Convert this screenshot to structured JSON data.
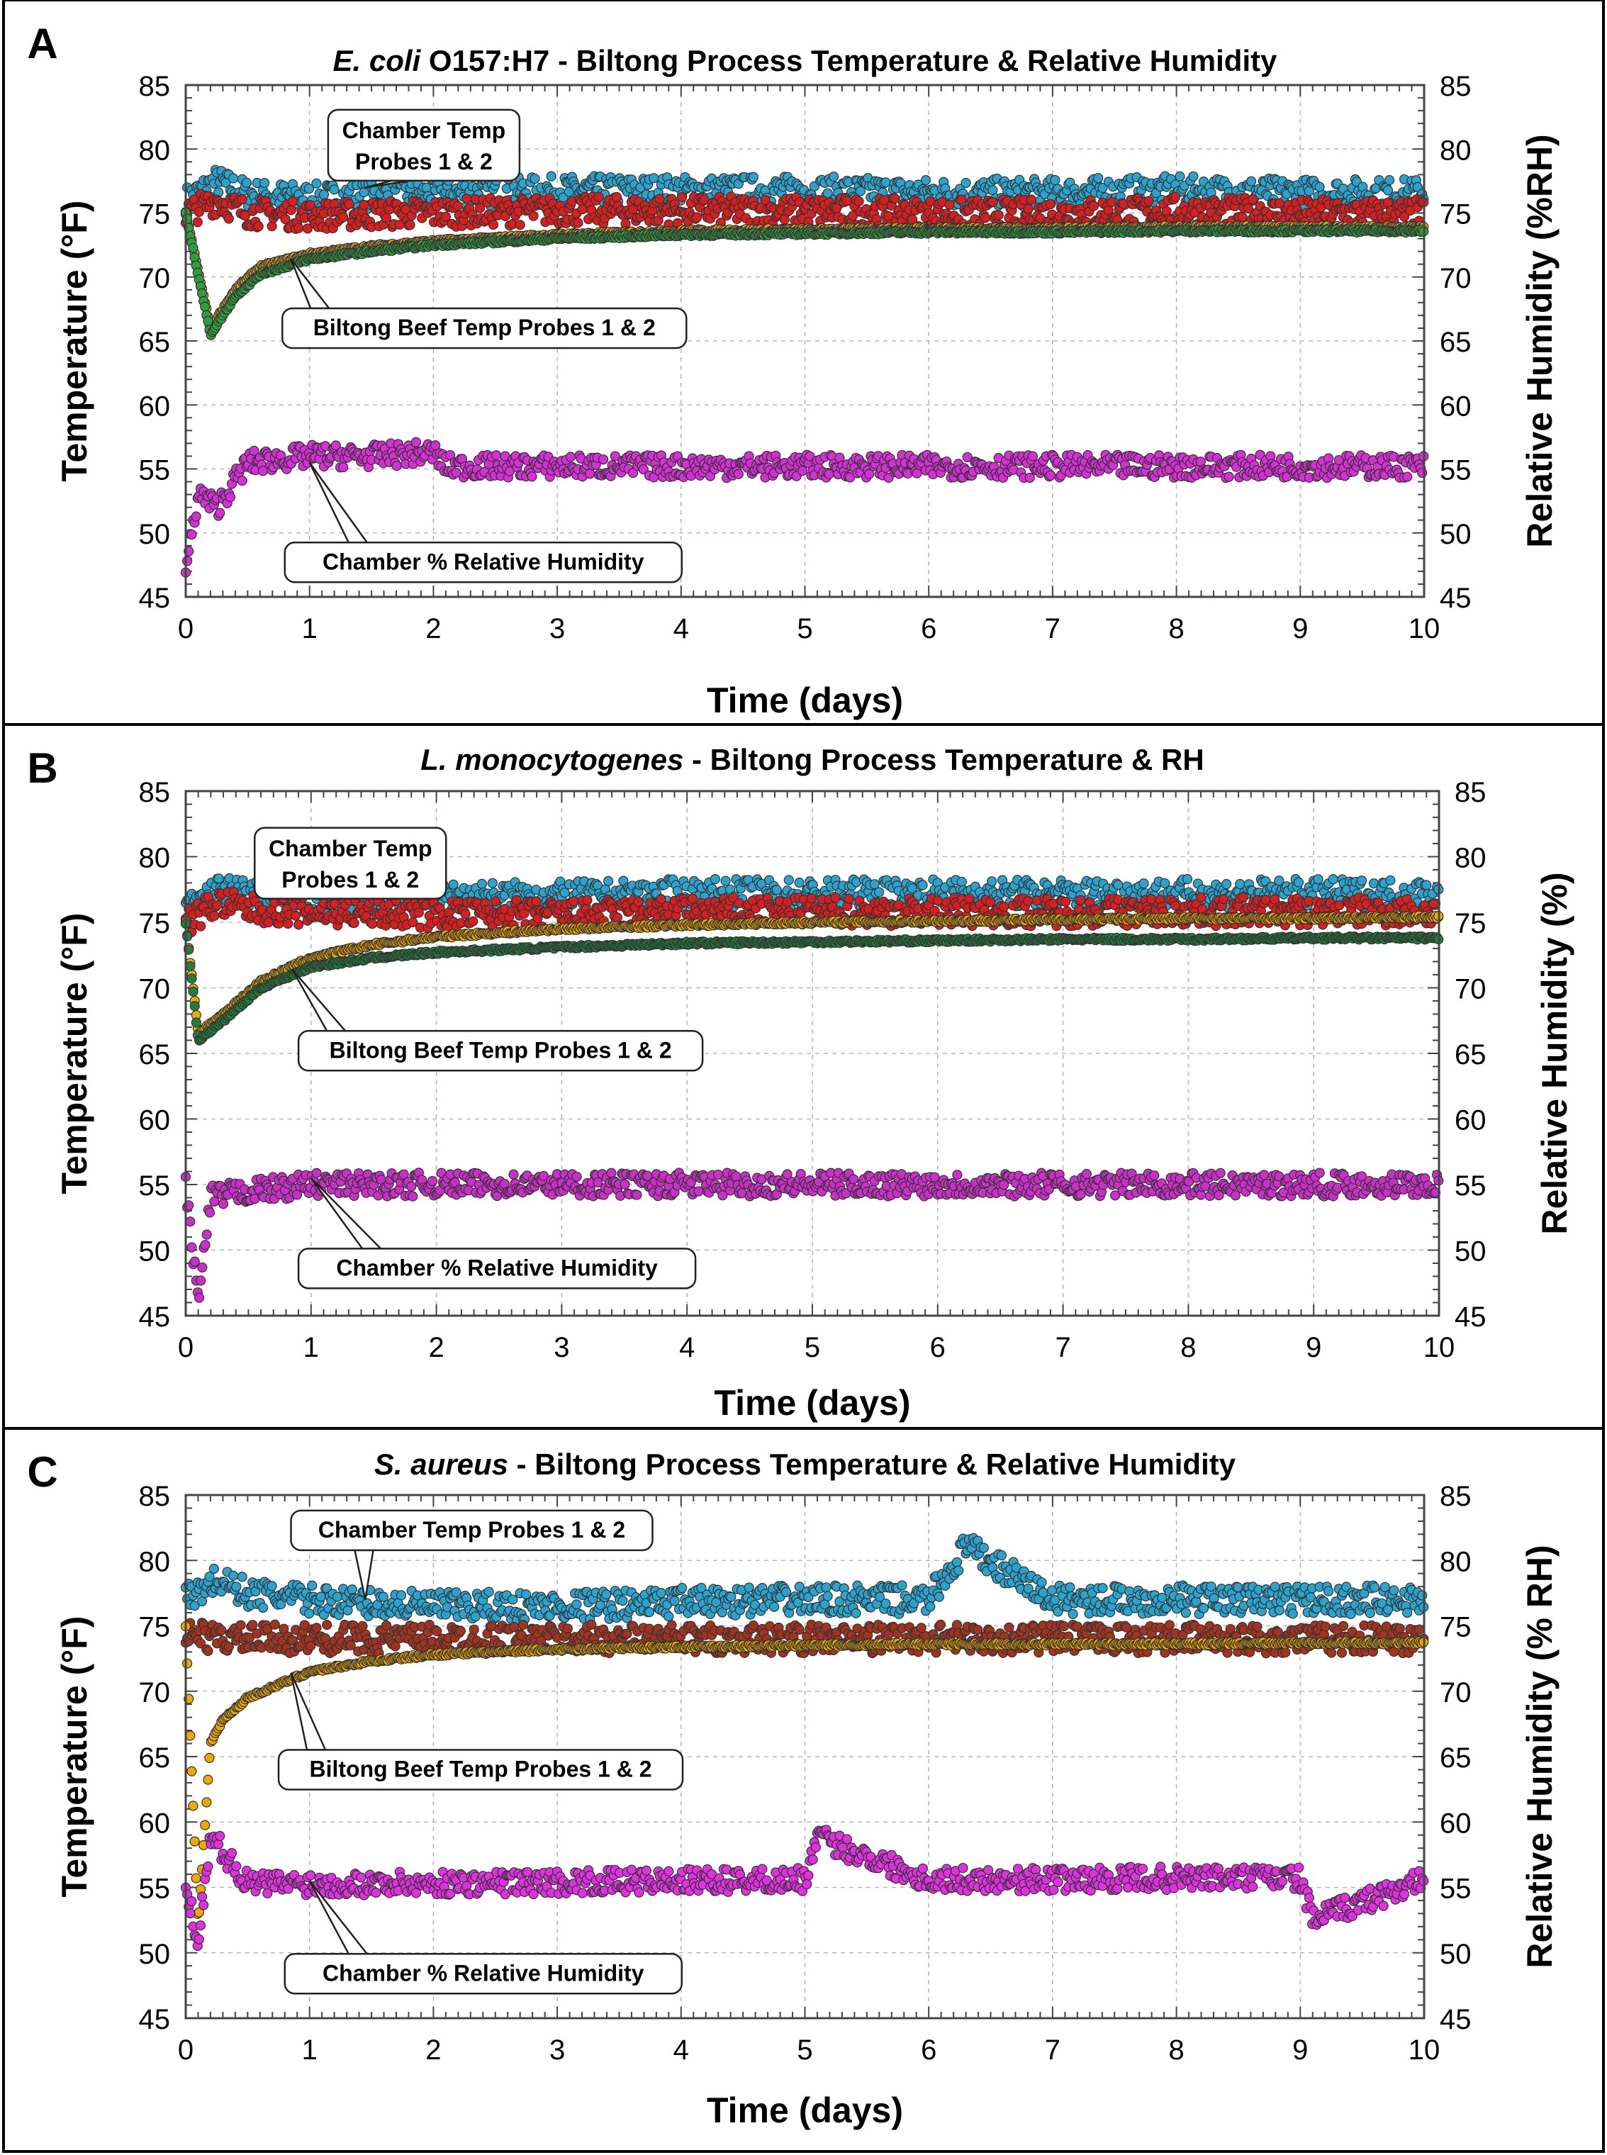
{
  "figure": {
    "panels": [
      {
        "id": "A",
        "title_italic": "E. coli",
        "title_rest": " O157:H7 - Biltong Process Temperature & Relative Humidity",
        "ylabel": "Temperature (°F)",
        "y2label": "Relative Humidity (%RH)",
        "xlabel": "Time (days)",
        "callouts": {
          "chamber": [
            "Chamber Temp",
            "Probes 1 & 2"
          ],
          "beef": [
            "Biltong Beef Temp Probes 1 & 2"
          ],
          "rh": [
            "Chamber % Relative Humidity"
          ]
        }
      },
      {
        "id": "B",
        "title_italic": "L. monocytogenes",
        "title_rest": " - Biltong Process Temperature & RH",
        "ylabel": "Temperature (°F)",
        "y2label": "Relative Humidity (%)",
        "xlabel": "Time (days)",
        "callouts": {
          "chamber": [
            "Chamber Temp",
            "Probes 1 & 2"
          ],
          "beef": [
            "Biltong Beef Temp Probes 1 & 2"
          ],
          "rh": [
            "Chamber % Relative Humidity"
          ]
        }
      },
      {
        "id": "C",
        "title_italic": "S. aureus",
        "title_rest": " - Biltong Process Temperature & Relative Humidity",
        "ylabel": "Temperature (°F)",
        "y2label": "Relative Humidity (% RH)",
        "xlabel": "Time (days)",
        "callouts": {
          "chamber": [
            "Chamber Temp Probes 1 & 2"
          ],
          "beef": [
            "Biltong Beef Temp Probes 1 & 2"
          ],
          "rh": [
            "Chamber % Relative Humidity"
          ]
        }
      }
    ]
  },
  "chart_data": [
    {
      "type": "scatter",
      "panel": "A",
      "title": "E. coli O157:H7 - Biltong Process Temperature & Relative Humidity",
      "xlabel": "Time (days)",
      "ylabel": "Temperature (°F)",
      "y2label": "Relative Humidity (%RH)",
      "xlim": [
        0,
        10
      ],
      "ylim": [
        45,
        85
      ],
      "y2lim": [
        45,
        85
      ],
      "xticks": [
        0,
        1,
        2,
        3,
        4,
        5,
        6,
        7,
        8,
        9,
        10
      ],
      "yticks": [
        45,
        50,
        55,
        60,
        65,
        70,
        75,
        80,
        85
      ],
      "series": [
        {
          "name": "Chamber Temp Probe 1",
          "color": "#2ba3cf",
          "x": [
            0,
            0.25,
            0.5,
            1,
            2,
            3,
            4,
            5,
            6,
            7,
            8,
            9,
            10
          ],
          "y": [
            76,
            77.5,
            76.5,
            76.2,
            76.5,
            76.8,
            76.8,
            76.8,
            76.6,
            76.6,
            76.8,
            76.6,
            76.6
          ]
        },
        {
          "name": "Chamber Temp Probe 2",
          "color": "#d81e1e",
          "x": [
            0,
            0.25,
            0.5,
            1,
            2,
            3,
            4,
            5,
            6,
            7,
            8,
            9,
            10
          ],
          "y": [
            75,
            76,
            75,
            74.8,
            75,
            75.2,
            75.2,
            75.2,
            75,
            75,
            75.2,
            75,
            75
          ]
        },
        {
          "name": "Biltong Beef Temp Probe 1",
          "color": "#d9a323",
          "x": [
            0,
            0.2,
            0.4,
            0.6,
            1,
            1.5,
            2,
            3,
            4,
            5,
            6,
            7,
            8,
            9,
            10
          ],
          "y": [
            75,
            66,
            69,
            70.8,
            71.8,
            72.4,
            72.8,
            73.3,
            73.6,
            73.7,
            73.8,
            73.8,
            73.9,
            73.9,
            73.9
          ]
        },
        {
          "name": "Biltong Beef Temp Probe 2",
          "color": "#2e9e3e",
          "x": [
            0,
            0.2,
            0.4,
            0.6,
            1,
            1.5,
            2,
            3,
            4,
            5,
            6,
            7,
            8,
            9,
            10
          ],
          "y": [
            75,
            65.5,
            68.5,
            70.2,
            71.4,
            72,
            72.5,
            73,
            73.3,
            73.4,
            73.5,
            73.5,
            73.6,
            73.6,
            73.6
          ]
        },
        {
          "name": "Chamber % Relative Humidity",
          "color": "#d62fd6",
          "axis": "right",
          "x": [
            0,
            0.1,
            0.25,
            0.5,
            1,
            1.5,
            2,
            2.1,
            3,
            4,
            5,
            6,
            7,
            8,
            9,
            10
          ],
          "y": [
            47,
            53,
            52,
            55.5,
            56,
            56,
            56.3,
            55.2,
            55.2,
            55.2,
            55.2,
            55.2,
            55.2,
            55.2,
            55.2,
            55.2
          ]
        }
      ],
      "annotations": [
        "Chamber Temp Probes 1 & 2",
        "Biltong Beef Temp Probes 1 & 2",
        "Chamber % Relative Humidity"
      ]
    },
    {
      "type": "scatter",
      "panel": "B",
      "title": "L. monocytogenes - Biltong Process Temperature & RH",
      "xlabel": "Time (days)",
      "ylabel": "Temperature (°F)",
      "y2label": "Relative Humidity (%)",
      "xlim": [
        0,
        10
      ],
      "ylim": [
        45,
        85
      ],
      "y2lim": [
        45,
        85
      ],
      "xticks": [
        0,
        1,
        2,
        3,
        4,
        5,
        6,
        7,
        8,
        9,
        10
      ],
      "yticks": [
        45,
        50,
        55,
        60,
        65,
        70,
        75,
        80,
        85
      ],
      "series": [
        {
          "name": "Chamber Temp Probe 1",
          "color": "#2ba3cf",
          "x": [
            0,
            0.25,
            0.5,
            1,
            2,
            3,
            4,
            5,
            6,
            7,
            8,
            9,
            10
          ],
          "y": [
            76,
            77.5,
            77.2,
            77,
            77,
            77,
            77.2,
            77.2,
            77.2,
            77.2,
            77.2,
            77.2,
            77.2
          ]
        },
        {
          "name": "Chamber Temp Probe 2",
          "color": "#d81e1e",
          "x": [
            0,
            0.25,
            0.5,
            1,
            2,
            3,
            4,
            5,
            6,
            7,
            8,
            9,
            10
          ],
          "y": [
            75,
            76.5,
            76,
            75.8,
            75.6,
            75.6,
            75.8,
            75.8,
            75.8,
            75.8,
            75.8,
            75.8,
            75.8
          ]
        },
        {
          "name": "Biltong Beef Temp Probe 1",
          "color": "#f0a800",
          "x": [
            0,
            0.1,
            0.3,
            0.6,
            1,
            1.5,
            2,
            3,
            4,
            5,
            6,
            7,
            8,
            9,
            10
          ],
          "y": [
            75,
            66.5,
            68,
            70.5,
            72.3,
            73.3,
            73.9,
            74.5,
            74.8,
            75,
            75.1,
            75.2,
            75.3,
            75.3,
            75.4
          ]
        },
        {
          "name": "Biltong Beef Temp Probe 2",
          "color": "#1f7f3a",
          "x": [
            0,
            0.1,
            0.3,
            0.6,
            1,
            1.5,
            2,
            3,
            4,
            5,
            6,
            7,
            8,
            9,
            10
          ],
          "y": [
            75,
            66,
            67.5,
            70,
            71.6,
            72.3,
            72.7,
            73.1,
            73.4,
            73.5,
            73.6,
            73.7,
            73.7,
            73.8,
            73.8
          ]
        },
        {
          "name": "Chamber % Relative Humidity",
          "color": "#cc2fc9",
          "axis": "right",
          "x": [
            0,
            0.1,
            0.2,
            0.5,
            1,
            2,
            3,
            4,
            5,
            6,
            7,
            8,
            9,
            10
          ],
          "y": [
            55,
            46,
            54,
            54.5,
            55,
            55,
            55,
            55,
            55,
            55,
            55,
            55,
            55,
            55
          ]
        }
      ],
      "annotations": [
        "Chamber Temp Probes 1 & 2",
        "Biltong Beef Temp Probes 1 & 2",
        "Chamber % Relative Humidity"
      ]
    },
    {
      "type": "scatter",
      "panel": "C",
      "title": "S. aureus - Biltong Process Temperature & Relative Humidity",
      "xlabel": "Time (days)",
      "ylabel": "Temperature (°F)",
      "y2label": "Relative Humidity (% RH)",
      "xlim": [
        0,
        10
      ],
      "ylim": [
        45,
        85
      ],
      "y2lim": [
        45,
        85
      ],
      "xticks": [
        0,
        1,
        2,
        3,
        4,
        5,
        6,
        7,
        8,
        9,
        10
      ],
      "yticks": [
        45,
        50,
        55,
        60,
        65,
        70,
        75,
        80,
        85
      ],
      "series": [
        {
          "name": "Chamber Temp Probe 1",
          "color": "#2ba3cf",
          "x": [
            0,
            0.25,
            0.5,
            1,
            2,
            3,
            4,
            5,
            6,
            6.3,
            7,
            8,
            9,
            10
          ],
          "y": [
            77,
            78.5,
            77.5,
            77,
            76.5,
            76.5,
            76.8,
            77,
            77,
            81,
            77,
            77,
            77,
            77
          ]
        },
        {
          "name": "Chamber Temp Probe 2",
          "color": "#a3331f",
          "x": [
            0,
            0.25,
            0.5,
            1,
            2,
            3,
            4,
            5,
            6,
            7,
            8,
            9,
            10
          ],
          "y": [
            74.5,
            74,
            74,
            74,
            74,
            74,
            74,
            74,
            74,
            74,
            74,
            74,
            74
          ]
        },
        {
          "name": "Biltong Beef Temp",
          "color": "#f0a800",
          "x": [
            0,
            0.1,
            0.2,
            0.3,
            0.5,
            1,
            1.5,
            2,
            3,
            4,
            5,
            6,
            7,
            8,
            9,
            10
          ],
          "y": [
            75,
            52,
            66,
            67.8,
            69.5,
            71.5,
            72.3,
            72.8,
            73.2,
            73.4,
            73.5,
            73.6,
            73.6,
            73.6,
            73.7,
            73.7
          ]
        },
        {
          "name": "Chamber % Relative Humidity",
          "color": "#e030e0",
          "axis": "right",
          "x": [
            0,
            0.1,
            0.2,
            0.5,
            1,
            2,
            3,
            4,
            5,
            5.1,
            6,
            7,
            8,
            9,
            9.1,
            10
          ],
          "y": [
            55,
            51,
            59,
            55.3,
            55.3,
            55.3,
            55.4,
            55.5,
            55.6,
            58.8,
            55.6,
            55.6,
            55.7,
            55.7,
            52.5,
            55.6
          ]
        }
      ],
      "annotations": [
        "Chamber Temp Probes 1 & 2",
        "Biltong Beef Temp Probes 1 & 2",
        "Chamber % Relative Humidity"
      ]
    }
  ]
}
